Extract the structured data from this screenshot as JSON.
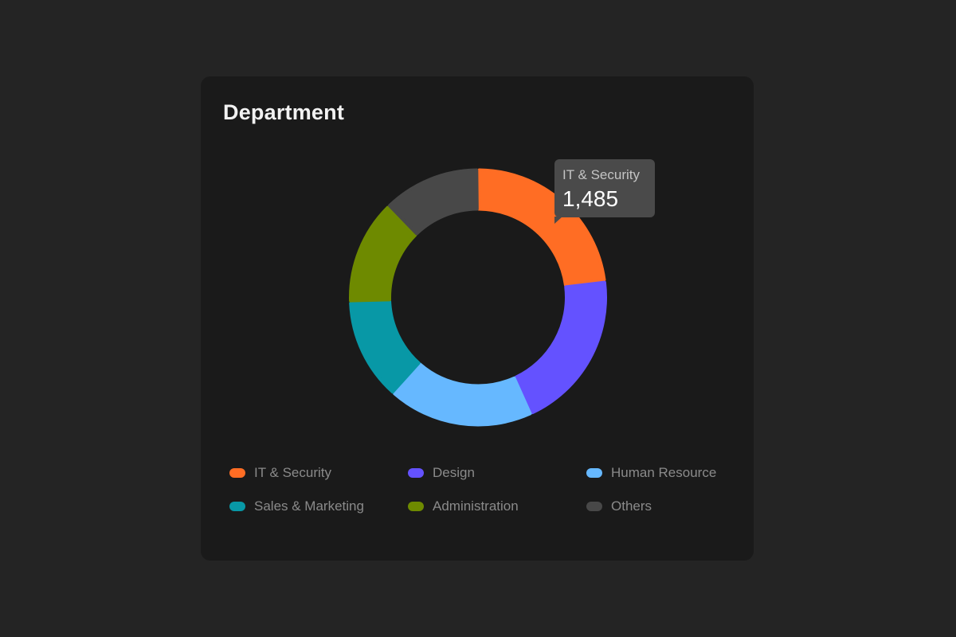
{
  "card": {
    "title": "Department"
  },
  "tooltip": {
    "label": "IT & Security",
    "value": "1,485"
  },
  "legend": [
    {
      "label": "IT & Security",
      "color": "#ff6d24"
    },
    {
      "label": "Design",
      "color": "#6452ff"
    },
    {
      "label": "Human Resource",
      "color": "#66b8ff"
    },
    {
      "label": "Sales & Marketing",
      "color": "#0898a6"
    },
    {
      "label": "Administration",
      "color": "#6e8a00"
    },
    {
      "label": "Others",
      "color": "#484848"
    }
  ],
  "chart_data": {
    "type": "pie",
    "subtype": "donut",
    "title": "Department",
    "categories": [
      "IT & Security",
      "Design",
      "Human Resource",
      "Sales & Marketing",
      "Administration",
      "Others"
    ],
    "values": [
      1485,
      1305,
      1190,
      835,
      855,
      800
    ],
    "colors": [
      "#ff6d24",
      "#6452ff",
      "#66b8ff",
      "#0898a6",
      "#6e8a00",
      "#484848"
    ],
    "highlighted": {
      "category": "IT & Security",
      "value": 1485
    },
    "legend_position": "bottom"
  }
}
